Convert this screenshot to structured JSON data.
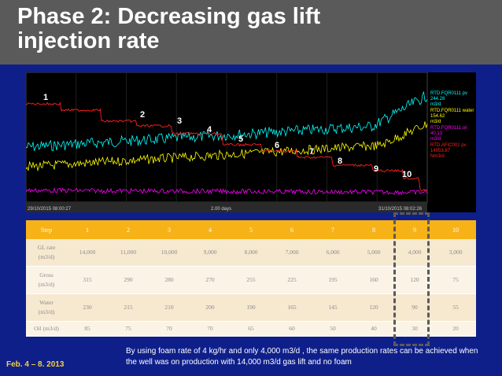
{
  "slide": {
    "title_line1": "Phase 2: Decreasing gas lift",
    "title_line2": "injection rate",
    "date": "Feb. 4 – 8. 2013",
    "note": "By using foam rate of 4 kg/hr and only 4,000 m3/d , the same production rates can be achieved when the well was on production with 14,000 m3/d gas lift and no foam"
  },
  "trend": {
    "start_time": "29/10/2015 08:00:27",
    "end_time": "31/10/2015 08:02:26",
    "span_label": "2.00 days",
    "legend": [
      {
        "name": "RTD.FQR0111 pv",
        "value": "244.28",
        "unit": "m3/d",
        "color": "#00ffff"
      },
      {
        "name": "RTD.FQR0111 water",
        "value": "154.62",
        "unit": "m3/d",
        "color": "#ffff00"
      },
      {
        "name": "RTD.FQR0111 oil",
        "value": "40.13",
        "unit": "m3/d",
        "color": "#ff00ff"
      },
      {
        "name": "RTD.AFIC001 pv",
        "value": "14953.87",
        "unit": "Nm3/d",
        "color": "#ff2020"
      }
    ],
    "phases": [
      "1",
      "2",
      "3",
      "4",
      "5",
      "6",
      "7",
      "8",
      "9",
      "10"
    ]
  },
  "table": {
    "headers": [
      "Step",
      "1",
      "2",
      "3",
      "4",
      "5",
      "6",
      "7",
      "8",
      "9",
      "10"
    ],
    "rows": [
      {
        "label1": "GL rate",
        "label2": "(m3/d)",
        "values": [
          "14,000",
          "11,000",
          "10,000",
          "9,000",
          "8,000",
          "7,000",
          "6,000",
          "5,000",
          "4,000",
          "3,000"
        ]
      },
      {
        "label1": "Gross",
        "label2": "(m3/d)",
        "values": [
          "315",
          "290",
          "280",
          "270",
          "255",
          "225",
          "195",
          "160",
          "120",
          "75"
        ]
      },
      {
        "label1": "Water",
        "label2": "(m3/d)",
        "values": [
          "230",
          "215",
          "210",
          "200",
          "190",
          "165",
          "145",
          "120",
          "90",
          "55"
        ]
      },
      {
        "label1": "Oil (m3/d)",
        "label2": "",
        "values": [
          "85",
          "75",
          "70",
          "70",
          "65",
          "60",
          "50",
          "40",
          "30",
          "20"
        ]
      }
    ]
  },
  "colors": {
    "background": "#0f1f8a",
    "title_bar": "#5a5a5a",
    "table_header": "#f7b217",
    "date": "#f4d03f"
  }
}
